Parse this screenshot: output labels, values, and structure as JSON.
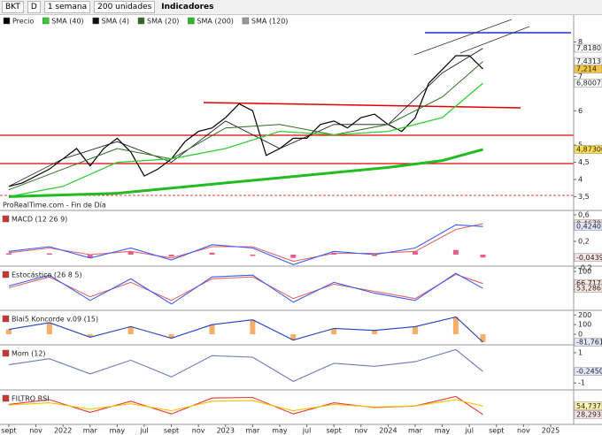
{
  "toolbar": {
    "symbol": "BKT",
    "mode": "D",
    "period": "1 semana",
    "units": "200 unidades",
    "indicators": "Indicadores"
  },
  "legend": [
    {
      "name": "Precio",
      "color": "#000000"
    },
    {
      "name": "SMA (40)",
      "color": "#33cc33"
    },
    {
      "name": "SMA (4)",
      "color": "#111111"
    },
    {
      "name": "SMA (20)",
      "color": "#2f6b1f"
    },
    {
      "name": "SMA (200)",
      "color": "#22bb22"
    },
    {
      "name": "SMA (120)",
      "color": "#999999"
    }
  ],
  "source": "ProRealTime.com - Fin de Día",
  "xaxis": {
    "xlim": [
      -0.65,
      41.7
    ],
    "xticks": [
      {
        "value": 0,
        "label": "sept"
      },
      {
        "value": 2,
        "label": "nov"
      },
      {
        "value": 4,
        "label": "2022"
      },
      {
        "value": 6,
        "label": "mar"
      },
      {
        "value": 8,
        "label": "may"
      },
      {
        "value": 10,
        "label": "jul"
      },
      {
        "value": 12,
        "label": "sept"
      },
      {
        "value": 14,
        "label": "nov"
      },
      {
        "value": 16,
        "label": "2023"
      },
      {
        "value": 18,
        "label": "mar"
      },
      {
        "value": 20,
        "label": "may"
      },
      {
        "value": 22,
        "label": "jul"
      },
      {
        "value": 24,
        "label": "sept"
      },
      {
        "value": 26,
        "label": "nov"
      },
      {
        "value": 28,
        "label": "2024"
      },
      {
        "value": 30,
        "label": "mar"
      },
      {
        "value": 32,
        "label": "may"
      },
      {
        "value": 34,
        "label": "jul"
      },
      {
        "value": 36,
        "label": "sept"
      },
      {
        "value": 38,
        "label": "nov"
      },
      {
        "value": 40,
        "label": "2025"
      }
    ]
  },
  "price_panel": {
    "ylim": [
      3.1,
      8.45
    ],
    "yticks": [
      8,
      7,
      6,
      5,
      {
        "value": 4.5,
        "label": "4,5"
      },
      4,
      {
        "value": 3.5,
        "label": "3,5"
      }
    ],
    "series": [
      {
        "color": "#000000",
        "width": 1.2,
        "x": [
          0,
          1,
          2,
          3,
          4,
          5,
          6,
          7,
          8,
          9,
          10,
          11,
          12,
          13,
          14,
          15,
          16,
          17,
          18,
          19,
          20,
          21,
          22,
          23,
          24,
          25,
          26,
          27,
          28,
          29,
          30,
          31,
          32,
          33,
          34,
          35
        ],
        "values": [
          3.8,
          3.9,
          4.1,
          4.3,
          4.6,
          4.9,
          4.4,
          4.9,
          5.2,
          4.8,
          4.1,
          4.3,
          4.6,
          5.1,
          5.4,
          5.5,
          5.8,
          6.2,
          6.0,
          4.7,
          4.9,
          5.2,
          5.2,
          5.6,
          5.7,
          5.5,
          5.8,
          5.9,
          5.6,
          5.4,
          5.8,
          6.8,
          7.2,
          7.6,
          7.6,
          7.214
        ]
      },
      {
        "color": "#111111",
        "width": 0.8,
        "x": [
          0,
          4,
          8,
          12,
          16,
          20,
          24,
          28,
          32,
          35
        ],
        "values": [
          3.8,
          4.6,
          5.1,
          4.5,
          5.7,
          4.9,
          5.6,
          5.6,
          7.1,
          7.818
        ]
      },
      {
        "color": "#2f6b1f",
        "width": 1,
        "x": [
          0,
          4,
          8,
          12,
          16,
          20,
          24,
          28,
          32,
          35
        ],
        "values": [
          3.7,
          4.3,
          4.9,
          4.6,
          5.5,
          5.6,
          5.3,
          5.6,
          6.4,
          7.4313
        ]
      },
      {
        "color": "#33cc33",
        "width": 1.3,
        "x": [
          0,
          4,
          8,
          12,
          16,
          20,
          24,
          28,
          32,
          35
        ],
        "values": [
          3.5,
          3.8,
          4.5,
          4.6,
          4.9,
          5.4,
          5.3,
          5.4,
          5.8,
          6.8007
        ]
      },
      {
        "color": "#22bb22",
        "width": 3,
        "x": [
          0,
          4,
          8,
          12,
          16,
          20,
          24,
          28,
          32,
          35
        ],
        "values": [
          3.5,
          3.55,
          3.6,
          3.75,
          3.9,
          4.05,
          4.2,
          4.35,
          4.55,
          4.873
        ]
      }
    ],
    "last_labels": [
      {
        "value": 7.818,
        "label": "7,8180",
        "color": "#ffffff"
      },
      {
        "value": 7.4313,
        "label": "7,4313",
        "color": "#ffffff"
      },
      {
        "value": 7.214,
        "label": "7,214",
        "color": "#f5c542"
      },
      {
        "value": 6.8007,
        "label": "6,8007",
        "color": "#ffffff"
      },
      {
        "value": 4.873,
        "label": "4,87300",
        "color": "#ffe14d"
      }
    ]
  },
  "indicators": [
    {
      "title": "MACD (12 26 9)",
      "ylim": [
        -0.16,
        0.64
      ],
      "yticks": [
        {
          "value": 0.6,
          "label": "0,6"
        },
        {
          "value": 0.2,
          "label": "0,2"
        },
        {
          "value": -0.2,
          "label": "-0,2"
        }
      ],
      "x": [
        0,
        3,
        6,
        9,
        12,
        15,
        18,
        21,
        24,
        27,
        30,
        33,
        35
      ],
      "series": [
        {
          "kind": "bar",
          "color": "#d81b60",
          "values": [
            0.02,
            0.02,
            -0.05,
            0.05,
            -0.03,
            0.03,
            -0.02,
            -0.05,
            0.03,
            -0.02,
            0.05,
            0.07,
            -0.0439
          ]
        },
        {
          "kind": "line",
          "color": "#e06666",
          "values": [
            0.03,
            0.1,
            0.0,
            0.05,
            -0.05,
            0.12,
            0.12,
            -0.1,
            0.02,
            0.02,
            0.05,
            0.38,
            0.4679
          ]
        },
        {
          "kind": "line",
          "color": "#3d5afe",
          "values": [
            0.05,
            0.12,
            -0.05,
            0.1,
            -0.08,
            0.15,
            0.1,
            -0.15,
            0.05,
            0.0,
            0.1,
            0.45,
            0.424
          ]
        }
      ],
      "last_labels": [
        {
          "value": 0.4679,
          "label": "0,4679",
          "color": "#fde7e7"
        },
        {
          "value": 0.424,
          "label": "0,4240",
          "color": "#e3e8ff"
        },
        {
          "value": -0.0439,
          "label": "-0,0439",
          "color": "#fde7e7"
        }
      ]
    },
    {
      "title": "Estocástico (26 8 5)",
      "ylim": [
        -5,
        110
      ],
      "yticks": [
        100,
        50
      ],
      "x": [
        0,
        3,
        6,
        9,
        12,
        15,
        18,
        21,
        24,
        27,
        30,
        33,
        35
      ],
      "series": [
        {
          "kind": "line",
          "color": "#e06666",
          "values": [
            55,
            85,
            30,
            70,
            20,
            80,
            85,
            25,
            65,
            45,
            25,
            92,
            66.717
          ]
        },
        {
          "kind": "line",
          "color": "#3d5afe",
          "values": [
            60,
            90,
            20,
            80,
            10,
            85,
            90,
            15,
            70,
            40,
            20,
            95,
            53.286
          ]
        }
      ],
      "last_labels": [
        {
          "value": 66.717,
          "label": "66,717",
          "color": "#fde7e7"
        },
        {
          "value": 53.286,
          "label": "53,286",
          "color": "#fde7e7"
        }
      ]
    },
    {
      "title": "Blai5 Koncorde v.09 (15)",
      "ylim": [
        -100,
        230
      ],
      "yticks": [
        200,
        100,
        0
      ],
      "x": [
        0,
        3,
        6,
        9,
        12,
        15,
        18,
        21,
        24,
        27,
        30,
        33,
        35
      ],
      "series": [
        {
          "kind": "bar",
          "color": "#f28c28",
          "values": [
            50,
            120,
            -30,
            80,
            -40,
            100,
            150,
            -60,
            60,
            40,
            80,
            180,
            -81.761
          ]
        },
        {
          "kind": "line",
          "color": "#1e3fbf",
          "values": [
            50,
            120,
            -30,
            80,
            -40,
            100,
            150,
            -60,
            60,
            40,
            80,
            180,
            -81.761
          ]
        }
      ],
      "last_labels": [
        {
          "value": -81.761,
          "label": "-81,761",
          "color": "#e3e8ff"
        }
      ]
    },
    {
      "title": "Mom (12)",
      "ylim": [
        -1.4,
        1.4
      ],
      "yticks": [
        1,
        -1
      ],
      "x": [
        0,
        3,
        6,
        9,
        12,
        15,
        18,
        21,
        24,
        27,
        30,
        33,
        35
      ],
      "series": [
        {
          "kind": "line",
          "color": "#6a7bbd",
          "values": [
            0.2,
            0.6,
            -0.4,
            0.5,
            -0.6,
            0.8,
            0.7,
            -0.9,
            0.3,
            0.1,
            0.4,
            1.2,
            -0.245
          ]
        }
      ],
      "last_labels": [
        {
          "value": -0.245,
          "label": "-0,2450",
          "color": "#e3e8ff"
        }
      ]
    },
    {
      "title": "FILTRO RSI",
      "ylim": [
        0,
        100
      ],
      "yticks": [],
      "x": [
        0,
        3,
        6,
        9,
        12,
        15,
        18,
        21,
        24,
        27,
        30,
        33,
        35
      ],
      "series": [
        {
          "kind": "line",
          "color": "#e53935",
          "values": [
            60,
            75,
            35,
            70,
            30,
            80,
            82,
            30,
            65,
            50,
            55,
            85,
            28.293
          ]
        },
        {
          "kind": "line",
          "color": "#f2c200",
          "values": [
            58,
            65,
            45,
            62,
            40,
            70,
            72,
            40,
            60,
            52,
            55,
            75,
            54.737
          ]
        }
      ],
      "last_labels": [
        {
          "value": 54.737,
          "label": "54,737",
          "color": "#fff3b0"
        },
        {
          "value": 28.293,
          "label": "28,293",
          "color": "#fde7e7"
        }
      ]
    }
  ]
}
